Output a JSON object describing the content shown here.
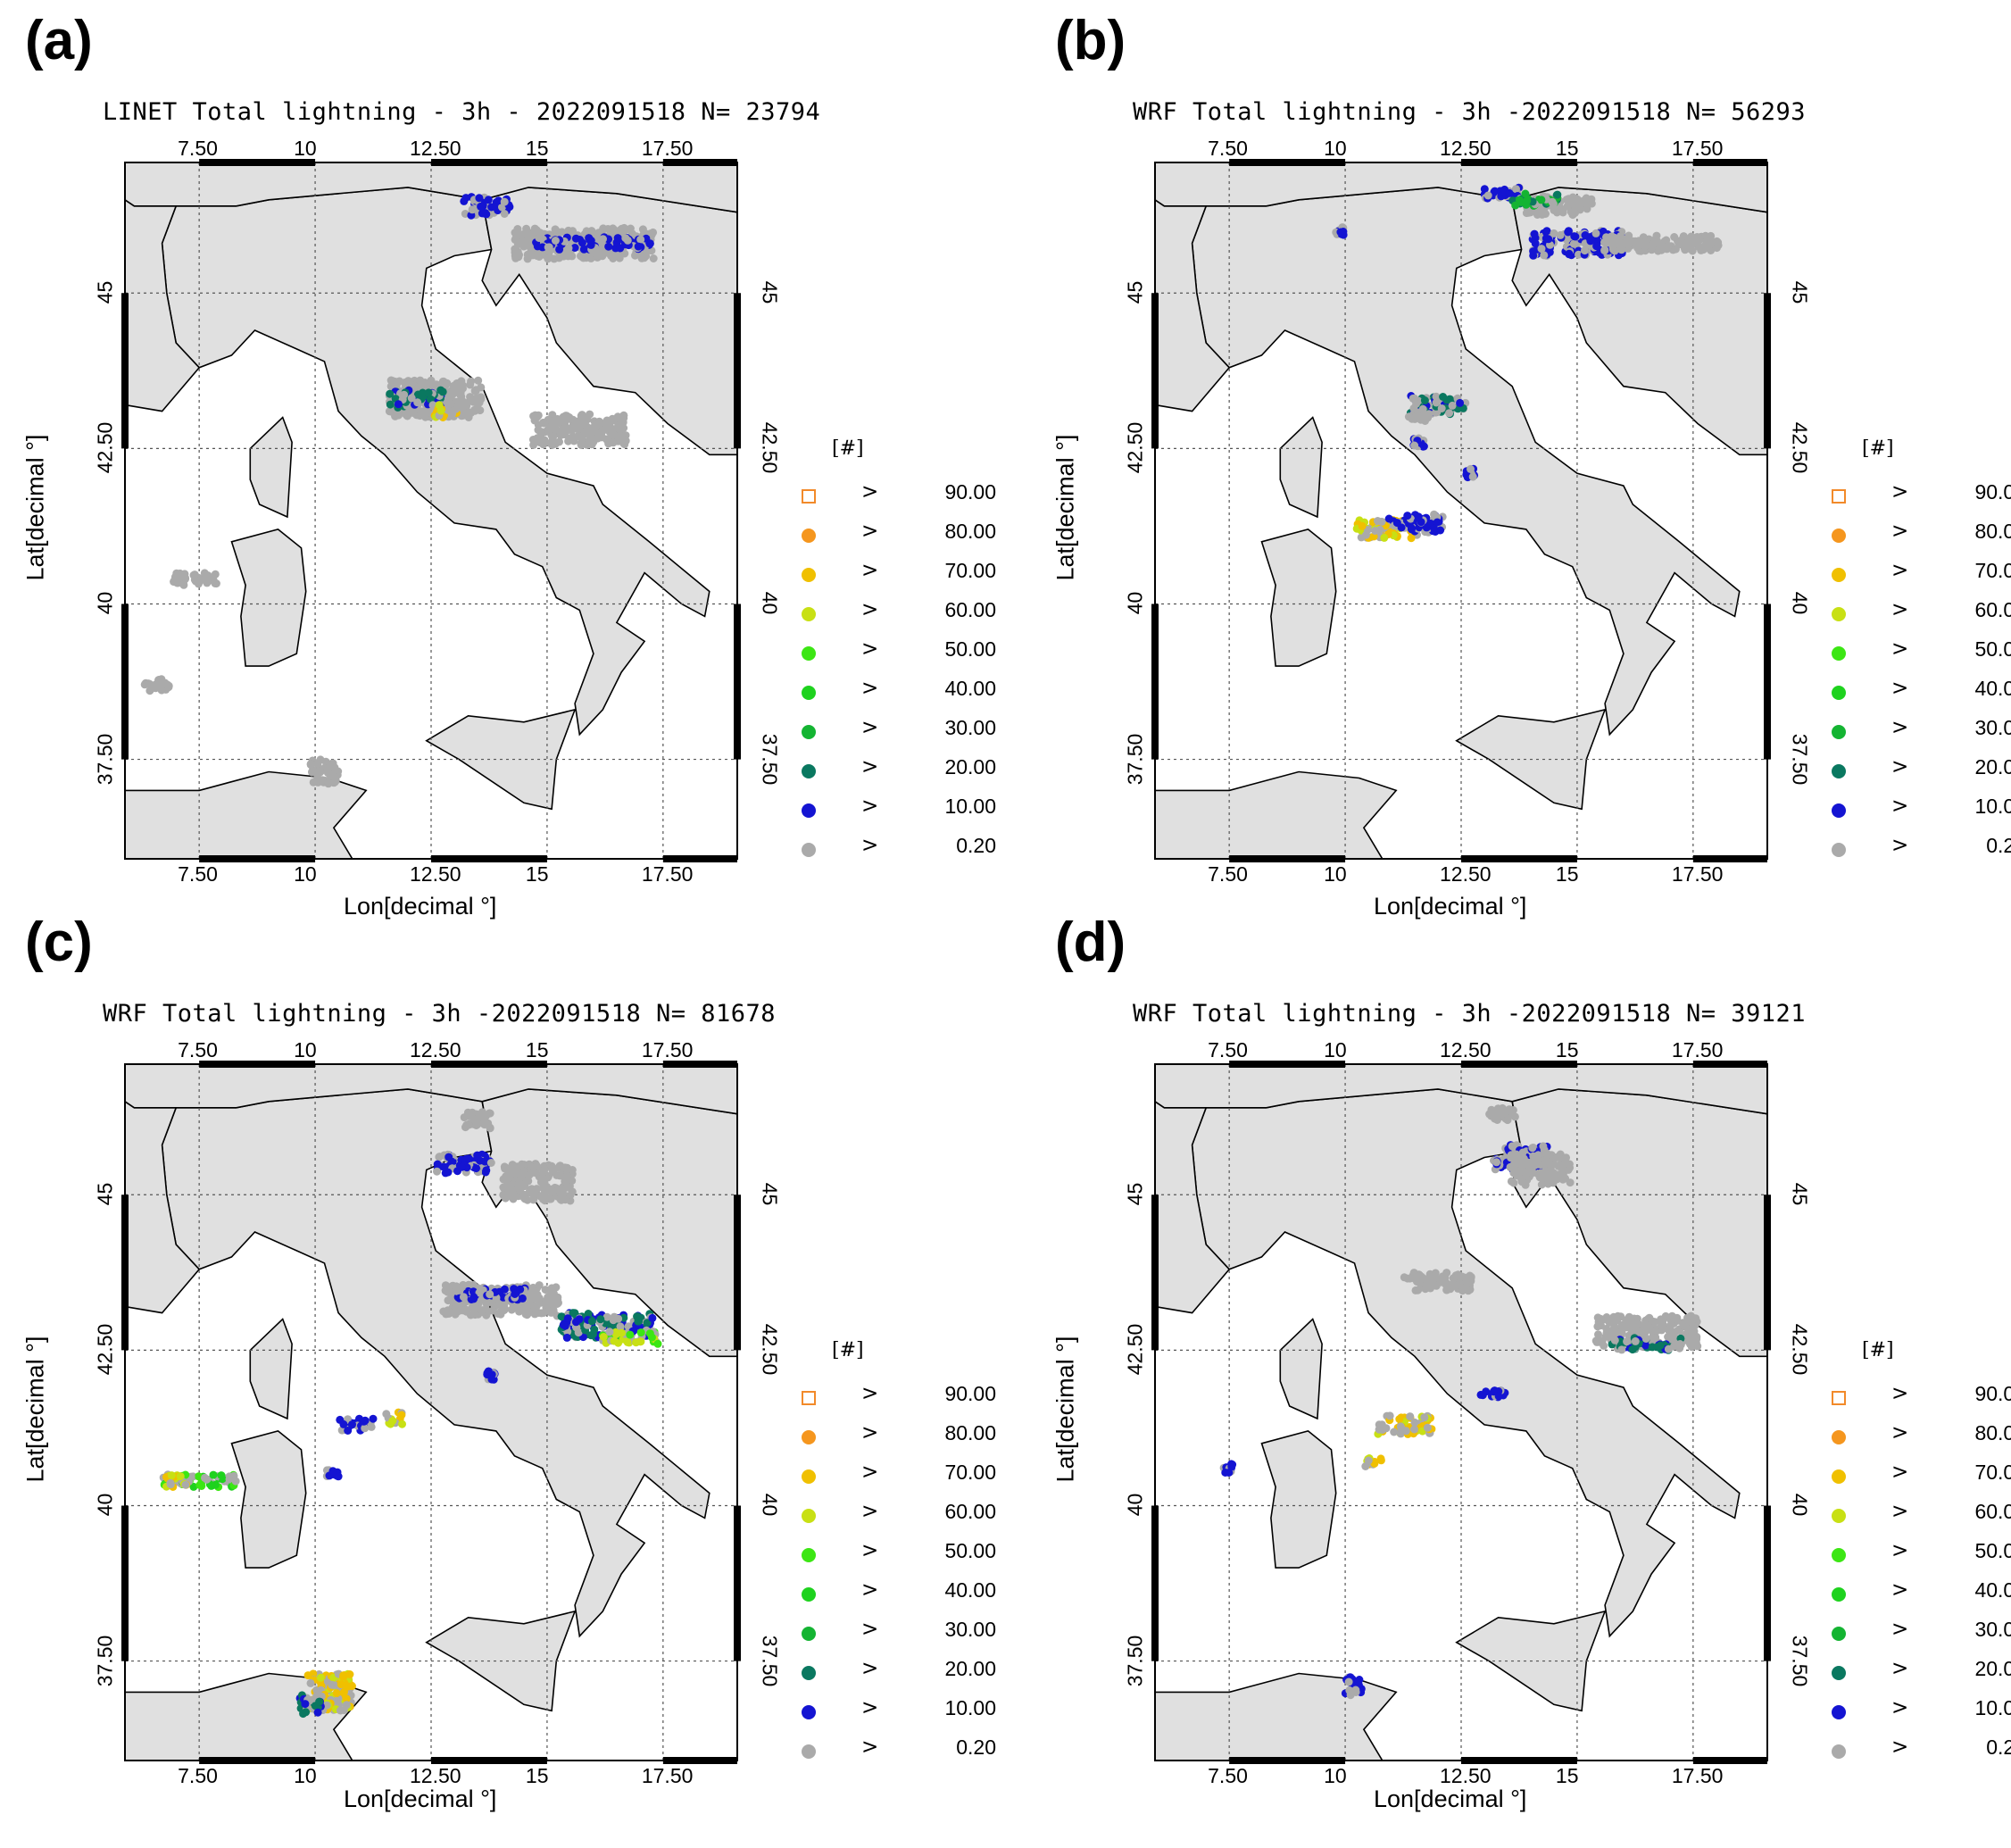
{
  "panels": [
    {
      "id": "a",
      "letter": "(a)",
      "title": "LINET Total lightning - 3h - 2022091518 N= 23794"
    },
    {
      "id": "b",
      "letter": "(b)",
      "title": "WRF Total lightning - 3h -2022091518 N= 56293"
    },
    {
      "id": "c",
      "letter": "(c)",
      "title": "WRF Total lightning - 3h -2022091518 N= 81678"
    },
    {
      "id": "d",
      "letter": "(d)",
      "title": "WRF Total lightning - 3h -2022091518 N= 39121"
    }
  ],
  "axes": {
    "xlabel": "Lon[decimal °]",
    "ylabel": "Lat[decimal °]",
    "lon_ticks": [
      "7.50",
      "10",
      "12.50",
      "15",
      "17.50"
    ],
    "lat_ticks": [
      "45",
      "42.50",
      "40",
      "37.50"
    ],
    "lon_range": [
      5.9,
      19.1
    ],
    "lat_range": [
      35.9,
      47.1
    ]
  },
  "legend": {
    "title": "[#]",
    "entries": [
      {
        "gt": ">",
        "value": "90.00",
        "color": "#f28a2a",
        "shape": "square"
      },
      {
        "gt": ">",
        "value": "80.00",
        "color": "#f5961e",
        "shape": "circle"
      },
      {
        "gt": ">",
        "value": "70.00",
        "color": "#f0c000",
        "shape": "circle"
      },
      {
        "gt": ">",
        "value": "60.00",
        "color": "#c8e014",
        "shape": "circle"
      },
      {
        "gt": ">",
        "value": "50.00",
        "color": "#3ce614",
        "shape": "circle"
      },
      {
        "gt": ">",
        "value": "40.00",
        "color": "#1ed21e",
        "shape": "circle"
      },
      {
        "gt": ">",
        "value": "30.00",
        "color": "#14b432",
        "shape": "circle"
      },
      {
        "gt": ">",
        "value": "20.00",
        "color": "#0a7860",
        "shape": "circle"
      },
      {
        "gt": ">",
        "value": "10.00",
        "color": "#1414d2",
        "shape": "circle"
      },
      {
        "gt": ">",
        "value": "0.20",
        "color": "#aaaaaa",
        "shape": "circle"
      }
    ]
  },
  "colors": {
    "land": "#e0e0e0",
    "sea": "#ffffff",
    "coast": "#000000",
    "grid": "#555555"
  }
}
